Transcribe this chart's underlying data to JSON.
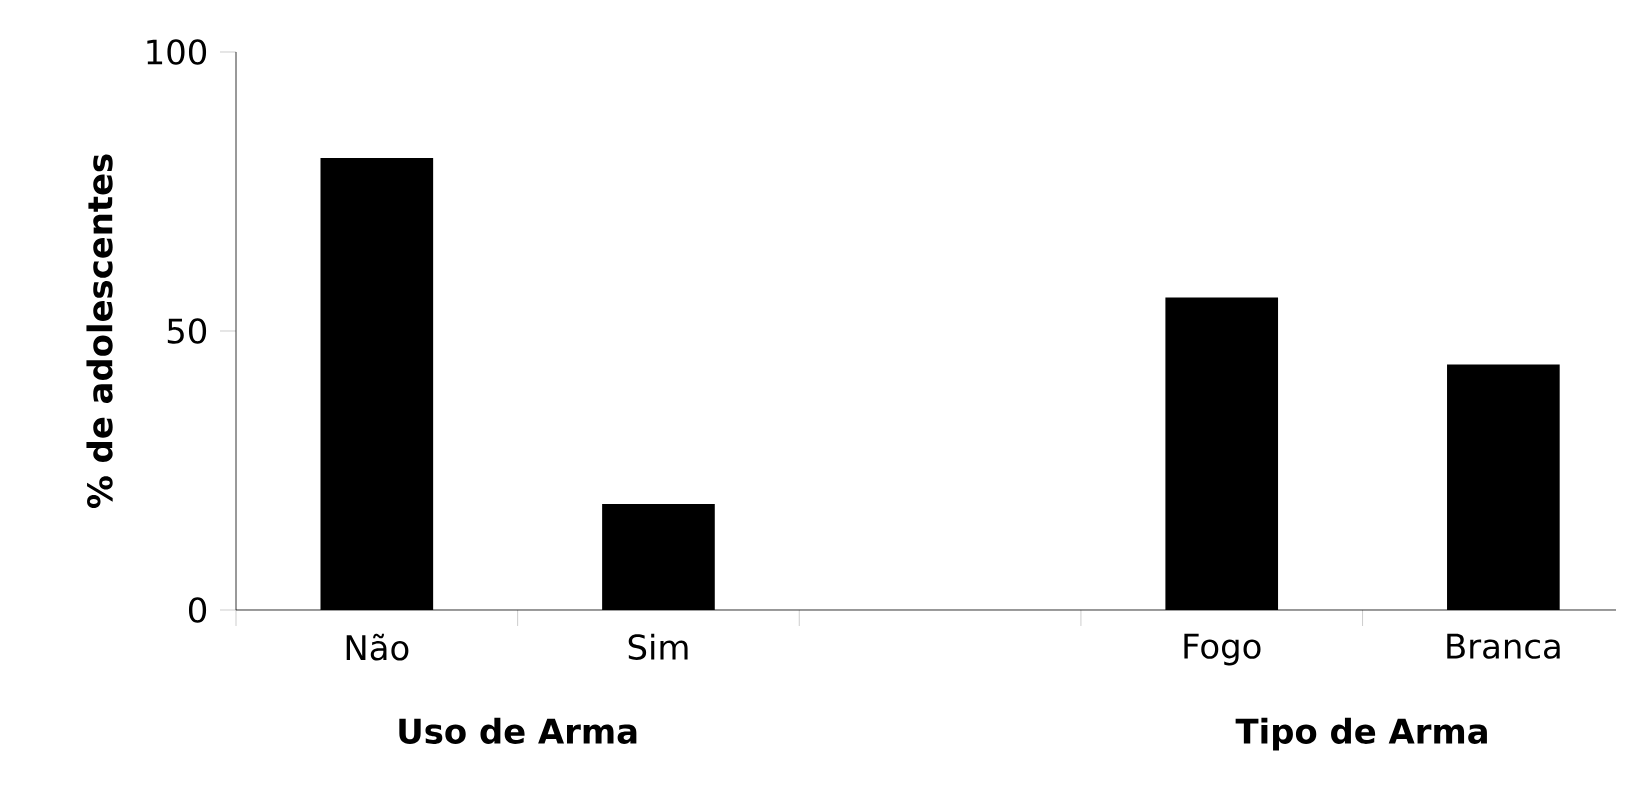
{
  "chart_data": {
    "type": "bar",
    "ylabel": "% de adolescentes",
    "categories": [
      "Não",
      "Sim",
      null,
      "Fogo",
      "Branca"
    ],
    "values": [
      81,
      19,
      null,
      56,
      44
    ],
    "color": "#000000",
    "ylim": [
      0,
      100
    ],
    "yticks": [
      0,
      50,
      100
    ],
    "annotations": [
      "Uso de Arma",
      "Tipo de Arma"
    ]
  }
}
